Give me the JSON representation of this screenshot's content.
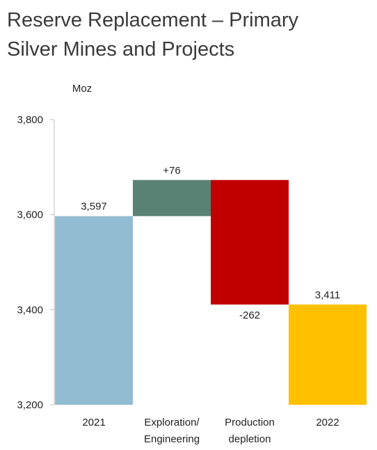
{
  "chart_data": {
    "type": "bar",
    "title_lines": [
      "Reserve Replacement – Primary",
      "Silver Mines and Projects"
    ],
    "unit": "Moz",
    "ylim": [
      3200,
      3800
    ],
    "yticks": [
      3200,
      3400,
      3600,
      3800
    ],
    "ytick_labels": [
      "3,200",
      "3,400",
      "3,600",
      "3,800"
    ],
    "grid": false,
    "bars": [
      {
        "category_lines": [
          "2021"
        ],
        "start": 3200,
        "end": 3597,
        "label": "3,597",
        "color": "#92bcd2",
        "label_pos": "top"
      },
      {
        "category_lines": [
          "Exploration/",
          "Engineering"
        ],
        "start": 3597,
        "end": 3673,
        "label": "+76",
        "color": "#5a8274",
        "label_pos": "top"
      },
      {
        "category_lines": [
          "Production",
          "depletion"
        ],
        "start": 3673,
        "end": 3411,
        "label": "-262",
        "color": "#c00000",
        "label_pos": "bottom"
      },
      {
        "category_lines": [
          "2022"
        ],
        "start": 3200,
        "end": 3411,
        "label": "3,411",
        "color": "#ffc000",
        "label_pos": "top"
      }
    ]
  }
}
